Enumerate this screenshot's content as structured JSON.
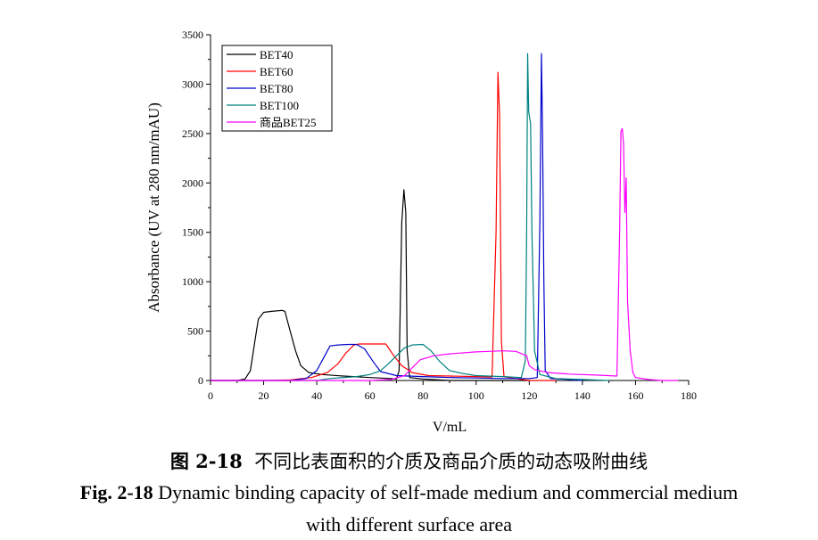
{
  "chart_data": {
    "type": "line",
    "xlabel": "V/mL",
    "ylabel": "Absorbance (UV at 280 nm/mAU)",
    "xlim": [
      0,
      180
    ],
    "ylim": [
      0,
      3500
    ],
    "xticks": [
      0,
      20,
      40,
      60,
      80,
      100,
      120,
      140,
      160,
      180
    ],
    "yticks": [
      0,
      500,
      1000,
      1500,
      2000,
      2500,
      3000,
      3500
    ],
    "legend_position": "top-left",
    "grid": false,
    "series": [
      {
        "name": "BET40",
        "color": "#000000",
        "points": [
          [
            0,
            0
          ],
          [
            10,
            0
          ],
          [
            13,
            15
          ],
          [
            15,
            100
          ],
          [
            17,
            450
          ],
          [
            18,
            620
          ],
          [
            20,
            690
          ],
          [
            23,
            700
          ],
          [
            27,
            710
          ],
          [
            28,
            700
          ],
          [
            30,
            500
          ],
          [
            32,
            300
          ],
          [
            34,
            150
          ],
          [
            37,
            80
          ],
          [
            42,
            60
          ],
          [
            50,
            45
          ],
          [
            60,
            30
          ],
          [
            68,
            20
          ],
          [
            70,
            15
          ],
          [
            71,
            100
          ],
          [
            72,
            1600
          ],
          [
            72.8,
            1930
          ],
          [
            73.5,
            1700
          ],
          [
            74,
            300
          ],
          [
            75,
            30
          ],
          [
            80,
            15
          ],
          [
            90,
            0
          ],
          [
            100,
            0
          ],
          [
            120,
            0
          ]
        ]
      },
      {
        "name": "BET60",
        "color": "#ff0000",
        "points": [
          [
            0,
            0
          ],
          [
            20,
            0
          ],
          [
            30,
            5
          ],
          [
            38,
            30
          ],
          [
            44,
            80
          ],
          [
            48,
            170
          ],
          [
            51,
            280
          ],
          [
            54,
            360
          ],
          [
            56,
            370
          ],
          [
            60,
            370
          ],
          [
            66,
            370
          ],
          [
            69,
            250
          ],
          [
            72,
            150
          ],
          [
            76,
            80
          ],
          [
            82,
            50
          ],
          [
            90,
            45
          ],
          [
            100,
            40
          ],
          [
            106,
            35
          ],
          [
            107.5,
            1500
          ],
          [
            108.2,
            3120
          ],
          [
            108.8,
            2700
          ],
          [
            109.5,
            400
          ],
          [
            110.5,
            40
          ],
          [
            115,
            20
          ],
          [
            120,
            0
          ],
          [
            130,
            0
          ]
        ]
      },
      {
        "name": "BET80",
        "color": "#0000cc",
        "points": [
          [
            0,
            0
          ],
          [
            30,
            0
          ],
          [
            36,
            20
          ],
          [
            40,
            100
          ],
          [
            43,
            250
          ],
          [
            45,
            350
          ],
          [
            48,
            360
          ],
          [
            52,
            365
          ],
          [
            55,
            365
          ],
          [
            58,
            320
          ],
          [
            61,
            200
          ],
          [
            64,
            90
          ],
          [
            70,
            50
          ],
          [
            80,
            40
          ],
          [
            90,
            30
          ],
          [
            100,
            25
          ],
          [
            110,
            20
          ],
          [
            115,
            20
          ],
          [
            120,
            20
          ],
          [
            123,
            30
          ],
          [
            124,
            1600
          ],
          [
            124.6,
            3310
          ],
          [
            125,
            2500
          ],
          [
            125.5,
            1000
          ],
          [
            126,
            100
          ],
          [
            128,
            20
          ],
          [
            135,
            10
          ],
          [
            140,
            0
          ]
        ]
      },
      {
        "name": "BET100",
        "color": "#008080",
        "points": [
          [
            0,
            0
          ],
          [
            40,
            0
          ],
          [
            45,
            20
          ],
          [
            55,
            40
          ],
          [
            60,
            60
          ],
          [
            64,
            100
          ],
          [
            67,
            170
          ],
          [
            70,
            250
          ],
          [
            73,
            330
          ],
          [
            76,
            360
          ],
          [
            80,
            365
          ],
          [
            83,
            300
          ],
          [
            86,
            200
          ],
          [
            90,
            100
          ],
          [
            95,
            70
          ],
          [
            100,
            50
          ],
          [
            110,
            40
          ],
          [
            117,
            30
          ],
          [
            118.5,
            200
          ],
          [
            119,
            1500
          ],
          [
            119.4,
            3310
          ],
          [
            119.8,
            2720
          ],
          [
            120.5,
            2600
          ],
          [
            121,
            1500
          ],
          [
            122,
            300
          ],
          [
            124,
            60
          ],
          [
            130,
            20
          ],
          [
            140,
            10
          ],
          [
            150,
            0
          ]
        ]
      },
      {
        "name": "商品BET25",
        "color": "#ff00ff",
        "points": [
          [
            0,
            0
          ],
          [
            60,
            0
          ],
          [
            68,
            10
          ],
          [
            73,
            50
          ],
          [
            76,
            130
          ],
          [
            79,
            210
          ],
          [
            84,
            250
          ],
          [
            90,
            270
          ],
          [
            100,
            290
          ],
          [
            105,
            295
          ],
          [
            110,
            300
          ],
          [
            115,
            295
          ],
          [
            119,
            250
          ],
          [
            120,
            150
          ],
          [
            122,
            110
          ],
          [
            127,
            80
          ],
          [
            135,
            65
          ],
          [
            145,
            55
          ],
          [
            153,
            45
          ],
          [
            154,
            1500
          ],
          [
            154.5,
            2520
          ],
          [
            155,
            2550
          ],
          [
            155.5,
            2400
          ],
          [
            156,
            1700
          ],
          [
            156.5,
            2050
          ],
          [
            157,
            800
          ],
          [
            158,
            300
          ],
          [
            159,
            80
          ],
          [
            160,
            30
          ],
          [
            165,
            10
          ],
          [
            170,
            0
          ],
          [
            176,
            0
          ]
        ]
      }
    ]
  },
  "caption": {
    "cn_label": "图 2-18",
    "cn_text": "不同比表面积的介质及商品介质的动态吸附曲线",
    "en_label": "Fig. 2-18",
    "en_line1": "Dynamic binding capacity of self-made medium and commercial medium",
    "en_line2": "with different surface area"
  }
}
